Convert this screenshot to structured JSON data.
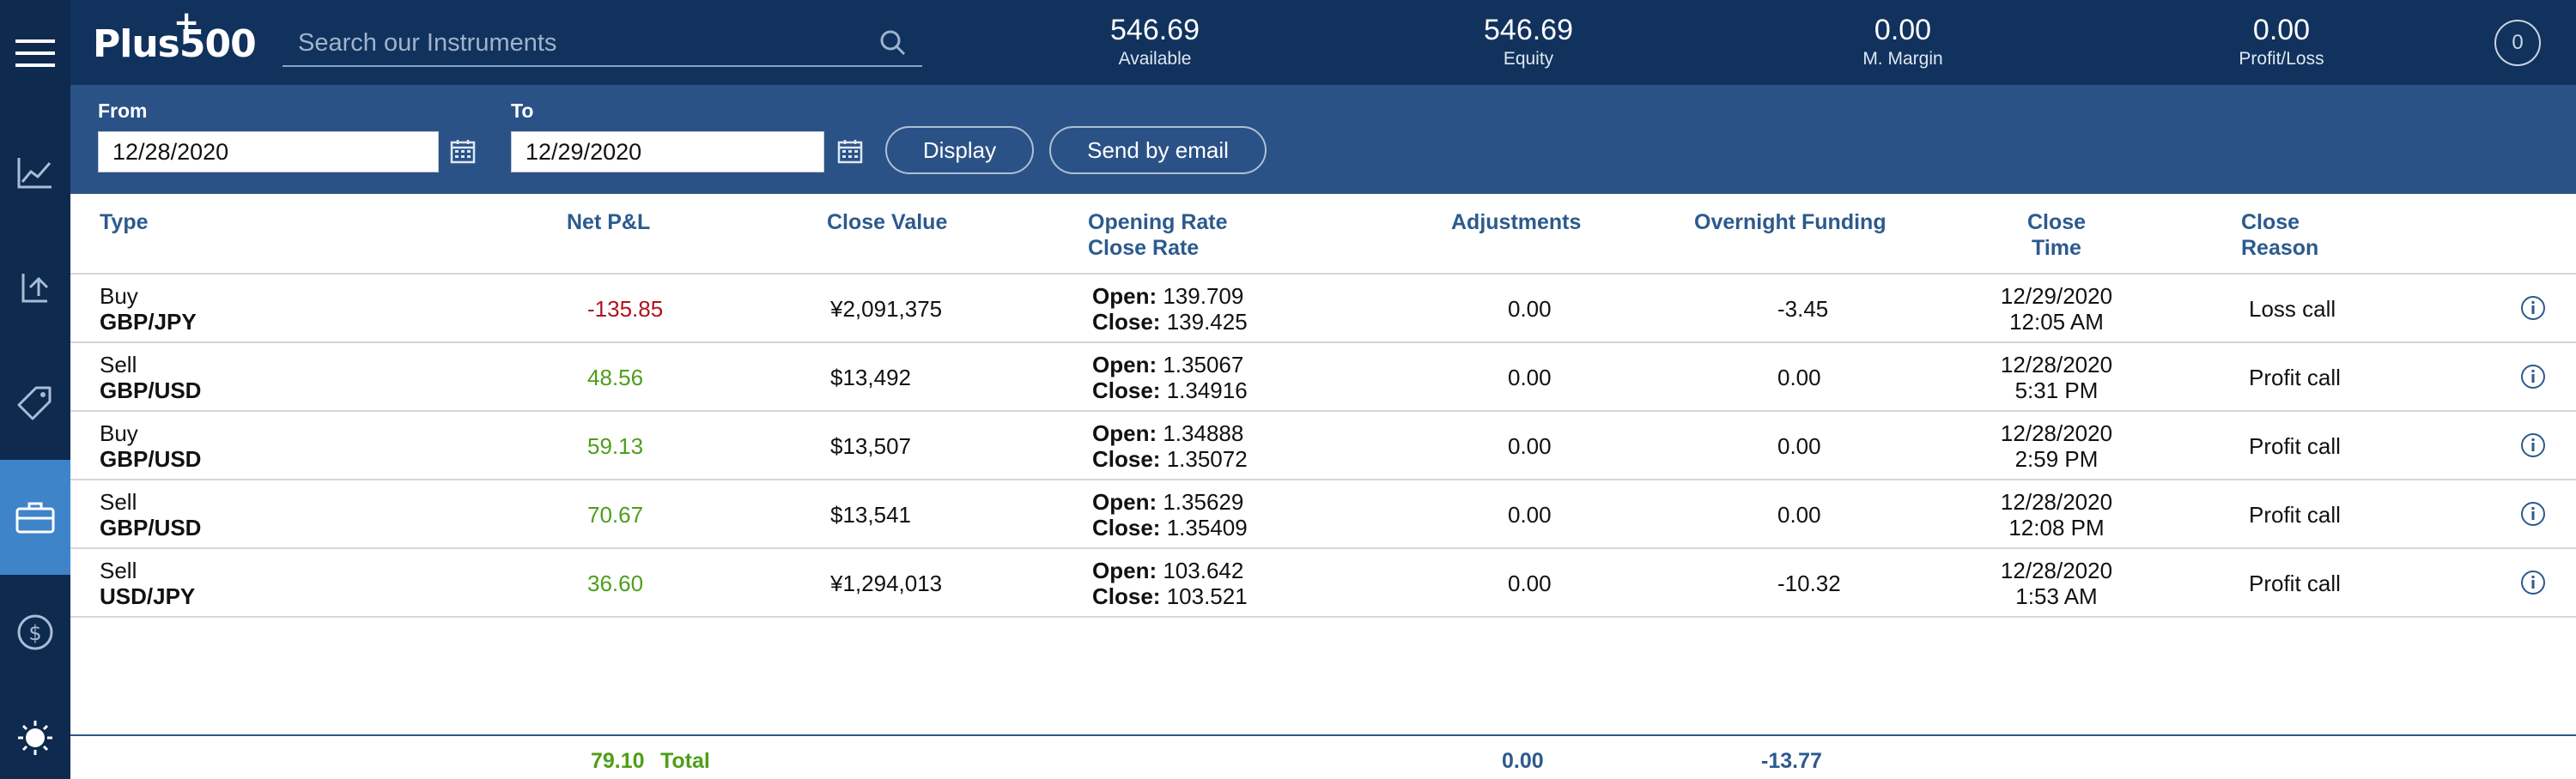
{
  "header": {
    "logo": "Plus500",
    "search_placeholder": "Search our Instruments",
    "stats": [
      {
        "value": "546.69",
        "label": "Available"
      },
      {
        "value": "546.69",
        "label": "Equity"
      },
      {
        "value": "0.00",
        "label": "M. Margin"
      },
      {
        "value": "0.00",
        "label": "Profit/Loss"
      }
    ],
    "notification_count": "0"
  },
  "sidebar": {
    "items": [
      {
        "icon": "menu-icon"
      },
      {
        "icon": "chart-icon"
      },
      {
        "icon": "trade-exchange-icon"
      },
      {
        "icon": "price-tag-icon"
      },
      {
        "icon": "briefcase-icon",
        "active": true
      },
      {
        "icon": "dollar-circle-icon"
      },
      {
        "icon": "brightness-icon"
      }
    ]
  },
  "filters": {
    "from_label": "From",
    "from_value": "12/28/2020",
    "to_label": "To",
    "to_value": "12/29/2020",
    "display_button": "Display",
    "email_button": "Send by email"
  },
  "table": {
    "headers": {
      "type": "Type",
      "net_pl": "Net P&L",
      "close_value": "Close Value",
      "rate_1": "Opening Rate",
      "rate_2": "Close Rate",
      "adjustments": "Adjustments",
      "overnight": "Overnight Funding",
      "time_1": "Close",
      "time_2": "Time",
      "reason_1": "Close",
      "reason_2": "Reason"
    },
    "open_label": "Open:",
    "close_label": "Close:",
    "rows": [
      {
        "side": "Buy",
        "instrument": "GBP/JPY",
        "net_pl": "-135.85",
        "close_value": "¥2,091,375",
        "open_rate": "139.709",
        "close_rate": "139.425",
        "adjustments": "0.00",
        "overnight": "-3.45",
        "date": "12/29/2020",
        "time": "12:05 AM",
        "reason": "Loss call"
      },
      {
        "side": "Sell",
        "instrument": "GBP/USD",
        "net_pl": "48.56",
        "close_value": "$13,492",
        "open_rate": "1.35067",
        "close_rate": "1.34916",
        "adjustments": "0.00",
        "overnight": "0.00",
        "date": "12/28/2020",
        "time": "5:31 PM",
        "reason": "Profit call"
      },
      {
        "side": "Buy",
        "instrument": "GBP/USD",
        "net_pl": "59.13",
        "close_value": "$13,507",
        "open_rate": "1.34888",
        "close_rate": "1.35072",
        "adjustments": "0.00",
        "overnight": "0.00",
        "date": "12/28/2020",
        "time": "2:59 PM",
        "reason": "Profit call"
      },
      {
        "side": "Sell",
        "instrument": "GBP/USD",
        "net_pl": "70.67",
        "close_value": "$13,541",
        "open_rate": "1.35629",
        "close_rate": "1.35409",
        "adjustments": "0.00",
        "overnight": "0.00",
        "date": "12/28/2020",
        "time": "12:08 PM",
        "reason": "Profit call"
      },
      {
        "side": "Sell",
        "instrument": "USD/JPY",
        "net_pl": "36.60",
        "close_value": "¥1,294,013",
        "open_rate": "103.642",
        "close_rate": "103.521",
        "adjustments": "0.00",
        "overnight": "-10.32",
        "date": "12/28/2020",
        "time": "1:53 AM",
        "reason": "Profit call"
      }
    ]
  },
  "totals": {
    "net_pl": "79.10",
    "label": "Total",
    "adjustments": "0.00",
    "overnight": "-13.77"
  },
  "colors": {
    "sidebar": "#0e2a4f",
    "topbar": "#11325d",
    "filterbar": "#2a5286",
    "active": "#3f83c9",
    "header_text": "#2c5a8e",
    "positive": "#4f9e1a",
    "negative": "#b0131b"
  }
}
